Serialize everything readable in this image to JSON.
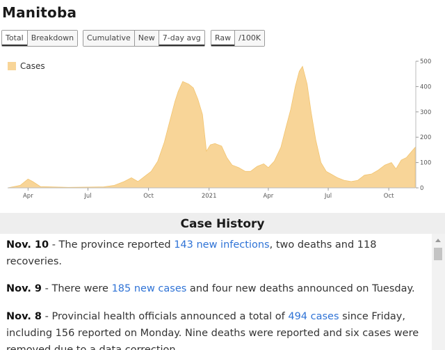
{
  "title": "Manitoba",
  "button_groups": [
    {
      "buttons": [
        {
          "label": "Total",
          "active": true
        },
        {
          "label": "Breakdown",
          "active": false
        }
      ]
    },
    {
      "buttons": [
        {
          "label": "Cumulative",
          "active": false
        },
        {
          "label": "New",
          "active": false
        },
        {
          "label": "7-day avg",
          "active": true
        }
      ]
    },
    {
      "buttons": [
        {
          "label": "Raw",
          "active": true
        },
        {
          "label": "/100K",
          "active": false
        }
      ]
    }
  ],
  "chart_data": {
    "type": "area",
    "series": [
      {
        "name": "Cases",
        "color": "#f8d598"
      }
    ],
    "legend": "top-left",
    "grid": false,
    "x_ticks": [
      "Apr",
      "Jul",
      "Oct",
      "2021",
      "Apr",
      "Jul",
      "Oct"
    ],
    "y_ticks": [
      0,
      100,
      200,
      300,
      400,
      500
    ],
    "ylim": [
      0,
      500
    ],
    "x_range": [
      "2020-03-01",
      "2021-11-10"
    ],
    "points": [
      [
        "2020-03-01",
        0
      ],
      [
        "2020-03-20",
        10
      ],
      [
        "2020-04-01",
        35
      ],
      [
        "2020-04-08",
        25
      ],
      [
        "2020-04-20",
        5
      ],
      [
        "2020-06-01",
        2
      ],
      [
        "2020-07-01",
        3
      ],
      [
        "2020-07-25",
        4
      ],
      [
        "2020-08-10",
        10
      ],
      [
        "2020-08-25",
        25
      ],
      [
        "2020-09-05",
        40
      ],
      [
        "2020-09-15",
        25
      ],
      [
        "2020-09-25",
        45
      ],
      [
        "2020-10-05",
        65
      ],
      [
        "2020-10-15",
        105
      ],
      [
        "2020-10-25",
        180
      ],
      [
        "2020-11-01",
        250
      ],
      [
        "2020-11-10",
        340
      ],
      [
        "2020-11-15",
        380
      ],
      [
        "2020-11-22",
        420
      ],
      [
        "2020-12-01",
        410
      ],
      [
        "2020-12-08",
        395
      ],
      [
        "2020-12-15",
        350
      ],
      [
        "2020-12-22",
        290
      ],
      [
        "2020-12-28",
        145
      ],
      [
        "2021-01-03",
        170
      ],
      [
        "2021-01-10",
        175
      ],
      [
        "2021-01-20",
        165
      ],
      [
        "2021-01-28",
        120
      ],
      [
        "2021-02-05",
        90
      ],
      [
        "2021-02-15",
        80
      ],
      [
        "2021-02-25",
        65
      ],
      [
        "2021-03-05",
        65
      ],
      [
        "2021-03-15",
        85
      ],
      [
        "2021-03-25",
        95
      ],
      [
        "2021-04-01",
        80
      ],
      [
        "2021-04-10",
        105
      ],
      [
        "2021-04-20",
        160
      ],
      [
        "2021-04-28",
        240
      ],
      [
        "2021-05-05",
        310
      ],
      [
        "2021-05-12",
        400
      ],
      [
        "2021-05-18",
        460
      ],
      [
        "2021-05-23",
        480
      ],
      [
        "2021-05-30",
        410
      ],
      [
        "2021-06-05",
        300
      ],
      [
        "2021-06-12",
        190
      ],
      [
        "2021-06-20",
        100
      ],
      [
        "2021-06-28",
        65
      ],
      [
        "2021-07-05",
        55
      ],
      [
        "2021-07-15",
        40
      ],
      [
        "2021-07-25",
        30
      ],
      [
        "2021-08-05",
        25
      ],
      [
        "2021-08-15",
        30
      ],
      [
        "2021-08-25",
        50
      ],
      [
        "2021-09-05",
        55
      ],
      [
        "2021-09-15",
        70
      ],
      [
        "2021-09-25",
        90
      ],
      [
        "2021-10-05",
        100
      ],
      [
        "2021-10-12",
        75
      ],
      [
        "2021-10-20",
        110
      ],
      [
        "2021-10-28",
        120
      ],
      [
        "2021-11-05",
        145
      ],
      [
        "2021-11-10",
        160
      ]
    ]
  },
  "history": {
    "heading": "Case History",
    "entries": [
      {
        "date": "Nov. 10",
        "pre": " - The province reported ",
        "link": "143 new infections",
        "post": ", two deaths and 118 recoveries."
      },
      {
        "date": "Nov. 9",
        "pre": " - There were ",
        "link": "185 new cases",
        "post": " and four new deaths announced on Tuesday."
      },
      {
        "date": "Nov. 8",
        "pre": " - Provincial health officials announced a total of ",
        "link": "494 cases",
        "post": " since Friday, including 156 reported on Monday. Nine deaths were reported and six cases were removed due to a data correction."
      }
    ]
  },
  "colors": {
    "area": "#f8d598",
    "link": "#2f73d6"
  }
}
